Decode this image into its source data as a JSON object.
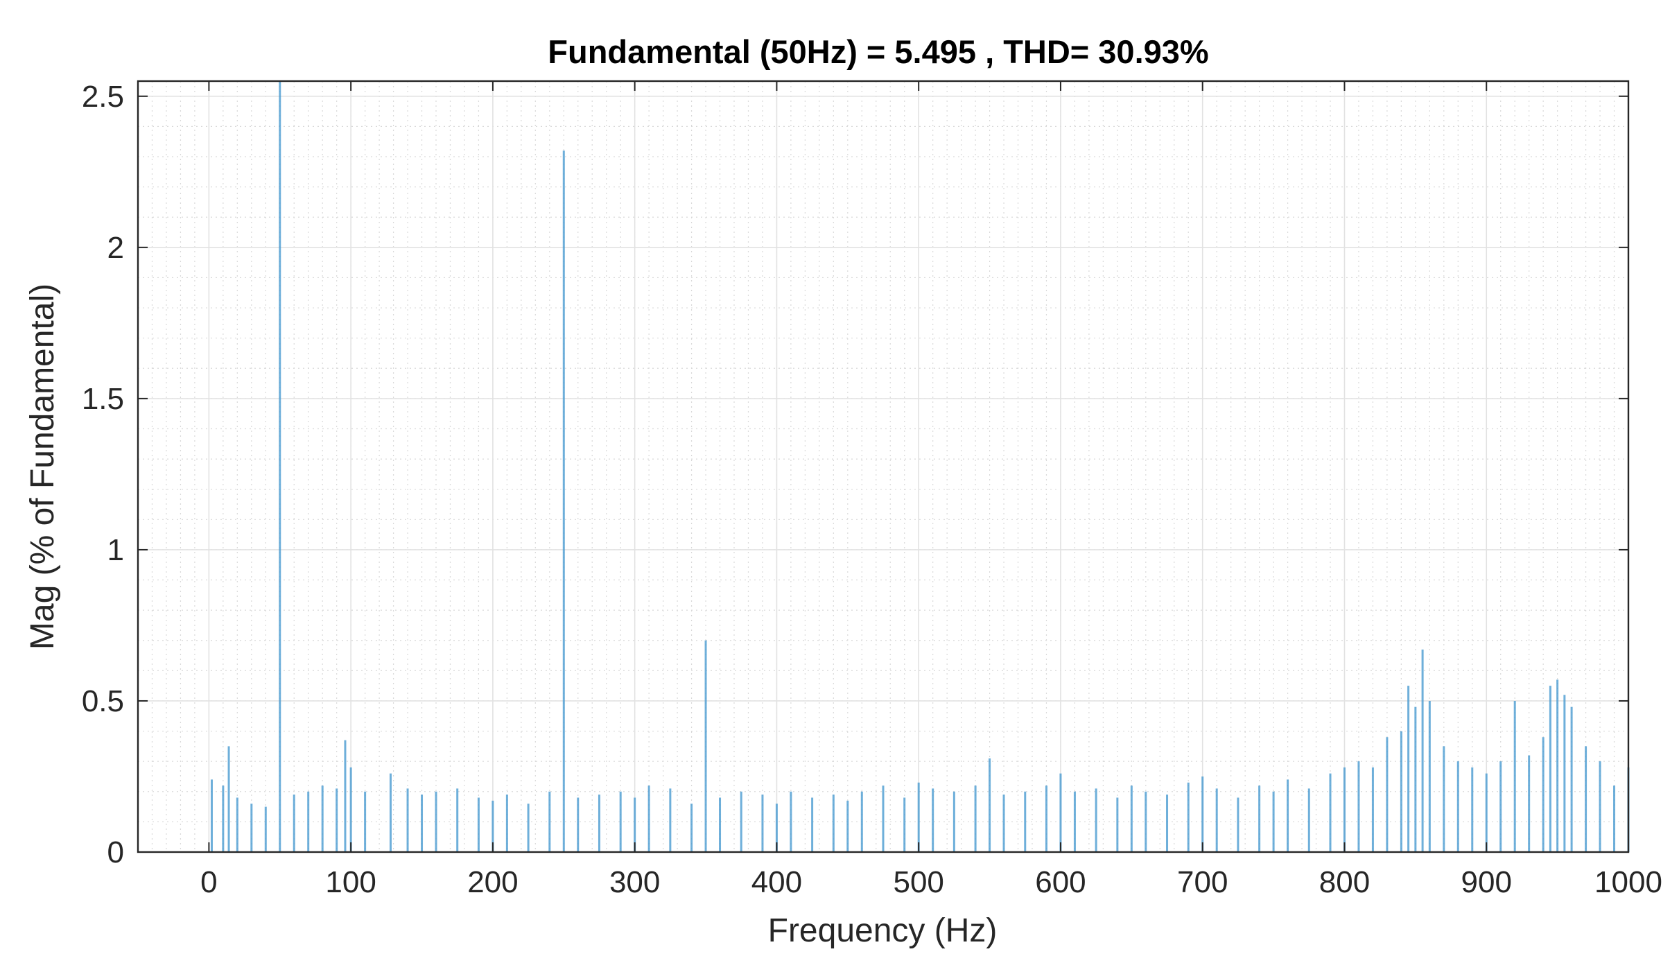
{
  "chart_data": {
    "type": "bar",
    "title": "Fundamental (50Hz) = 5.495 , THD= 30.93%",
    "xlabel": "Frequency (Hz)",
    "ylabel": "Mag (% of Fundamental)",
    "xlim": [
      -50,
      1000
    ],
    "ylim": [
      0,
      2.55
    ],
    "xticks": [
      0,
      100,
      200,
      300,
      400,
      500,
      600,
      700,
      800,
      900,
      1000
    ],
    "xtick_labels": [
      "0",
      "100",
      "200",
      "300",
      "400",
      "500",
      "600",
      "700",
      "800",
      "900",
      "1000"
    ],
    "yticks": [
      0,
      0.5,
      1,
      1.5,
      2,
      2.5
    ],
    "ytick_labels": [
      "0",
      "0.5",
      "1",
      "1.5",
      "2",
      "2.5"
    ],
    "grid": true,
    "minor_grid": true,
    "color": "#4a9bd1",
    "x": [
      2,
      10,
      14,
      20,
      30,
      40,
      50,
      60,
      70,
      80,
      90,
      96,
      100,
      110,
      128,
      140,
      150,
      160,
      175,
      190,
      200,
      210,
      225,
      240,
      250,
      260,
      275,
      290,
      300,
      310,
      325,
      340,
      350,
      360,
      375,
      390,
      400,
      410,
      425,
      440,
      450,
      460,
      475,
      490,
      500,
      510,
      525,
      540,
      550,
      560,
      575,
      590,
      600,
      610,
      625,
      640,
      650,
      660,
      675,
      690,
      700,
      710,
      725,
      740,
      750,
      760,
      775,
      790,
      800,
      810,
      820,
      830,
      840,
      845,
      850,
      855,
      860,
      870,
      880,
      890,
      900,
      910,
      920,
      930,
      940,
      945,
      950,
      955,
      960,
      970,
      980,
      990,
      1000
    ],
    "values": [
      0.24,
      0.22,
      0.35,
      0.18,
      0.16,
      0.15,
      2.55,
      0.19,
      0.2,
      0.22,
      0.21,
      0.37,
      0.28,
      0.2,
      0.26,
      0.21,
      0.19,
      0.2,
      0.21,
      0.18,
      0.17,
      0.19,
      0.16,
      0.2,
      2.32,
      0.18,
      0.19,
      0.2,
      0.18,
      0.22,
      0.21,
      0.16,
      0.7,
      0.18,
      0.2,
      0.19,
      0.16,
      0.2,
      0.18,
      0.19,
      0.17,
      0.2,
      0.22,
      0.18,
      0.23,
      0.21,
      0.2,
      0.22,
      0.31,
      0.19,
      0.2,
      0.22,
      0.26,
      0.2,
      0.21,
      0.18,
      0.22,
      0.2,
      0.19,
      0.23,
      0.25,
      0.21,
      0.18,
      0.22,
      0.2,
      0.24,
      0.21,
      0.26,
      0.28,
      0.3,
      0.28,
      0.38,
      0.4,
      0.55,
      0.48,
      0.67,
      0.5,
      0.35,
      0.3,
      0.28,
      0.26,
      0.3,
      0.5,
      0.32,
      0.38,
      0.55,
      0.57,
      0.52,
      0.48,
      0.35,
      0.3,
      0.22,
      0.28
    ]
  }
}
